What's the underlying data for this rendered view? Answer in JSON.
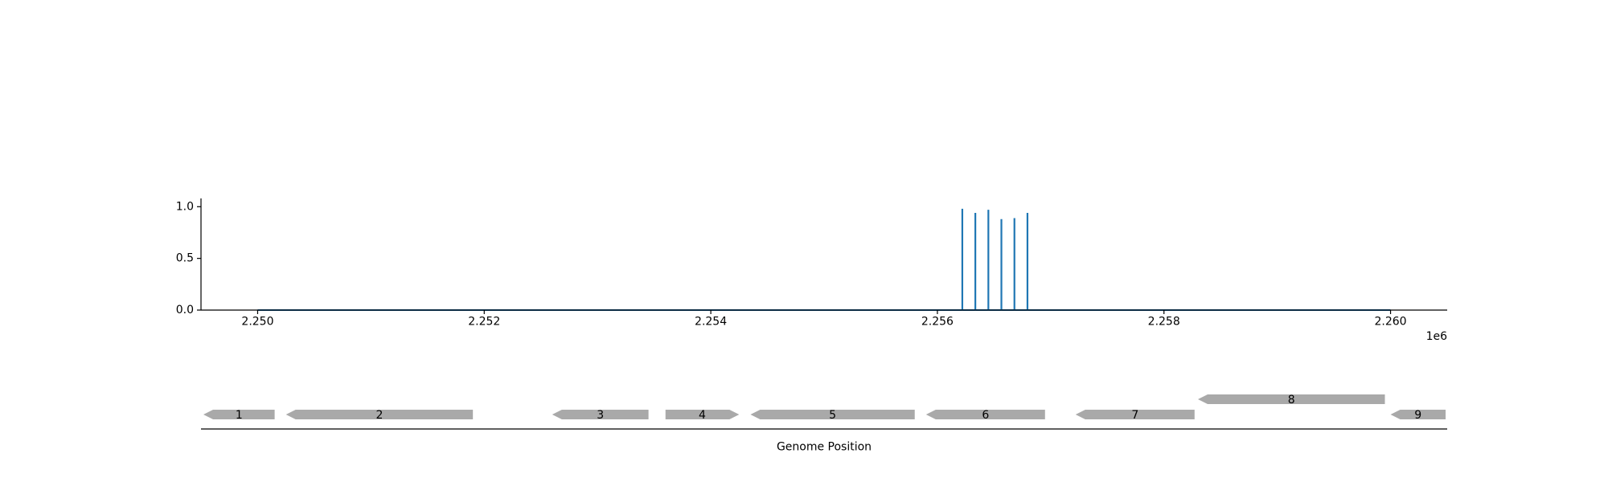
{
  "chart_data": {
    "type": "line",
    "title": "",
    "xlabel": "Genome Position",
    "ylabel": "",
    "x_offset_label": "1e6",
    "xlim": [
      2249500,
      2260500
    ],
    "ylim": [
      0,
      1.08
    ],
    "x_ticks": [
      2250000,
      2252000,
      2254000,
      2256000,
      2258000,
      2260000
    ],
    "x_tick_labels": [
      "2.250",
      "2.252",
      "2.254",
      "2.256",
      "2.258",
      "2.260"
    ],
    "y_ticks": [
      0.0,
      0.5,
      1.0
    ],
    "y_tick_labels": [
      "0.0",
      "0.5",
      "1.0"
    ],
    "baseline": {
      "x": [
        2250000,
        2260000
      ],
      "y": [
        0,
        0
      ]
    },
    "series": [
      {
        "color": "#1f77b4",
        "peaks": [
          {
            "x": 2256220,
            "y": 0.98
          },
          {
            "x": 2256335,
            "y": 0.94
          },
          {
            "x": 2256450,
            "y": 0.97
          },
          {
            "x": 2256565,
            "y": 0.88
          },
          {
            "x": 2256680,
            "y": 0.89
          },
          {
            "x": 2256795,
            "y": 0.94
          }
        ]
      }
    ],
    "genes": [
      {
        "label": "1",
        "start": 2249500,
        "end": 2250150,
        "strand": "-",
        "row": 0
      },
      {
        "label": "2",
        "start": 2250250,
        "end": 2251900,
        "strand": "-",
        "row": 0
      },
      {
        "label": "3",
        "start": 2252600,
        "end": 2253450,
        "strand": "-",
        "row": 0
      },
      {
        "label": "4",
        "start": 2253600,
        "end": 2254250,
        "strand": "+",
        "row": 0
      },
      {
        "label": "5",
        "start": 2254350,
        "end": 2255800,
        "strand": "-",
        "row": 0
      },
      {
        "label": "6",
        "start": 2255900,
        "end": 2256950,
        "strand": "-",
        "row": 0
      },
      {
        "label": "7",
        "start": 2257220,
        "end": 2258270,
        "strand": "-",
        "row": 0
      },
      {
        "label": "8",
        "start": 2258300,
        "end": 2259950,
        "strand": "-",
        "row": 1
      },
      {
        "label": "9",
        "start": 2260000,
        "end": 2260500,
        "strand": "-",
        "row": 0
      }
    ],
    "gene_color": "#a9a9a9",
    "grid": false
  }
}
